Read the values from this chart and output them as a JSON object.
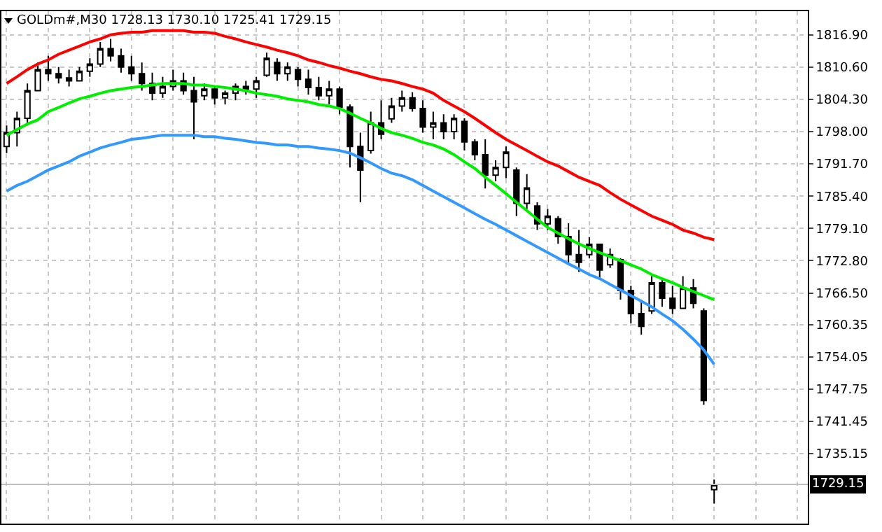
{
  "chart_data": {
    "type": "candlestick",
    "title": "GOLDm#,M30 1728.13 1730.10 1725.41 1729.15",
    "color": "#000000",
    "categories": [
      null,
      null,
      null,
      null,
      null,
      null,
      null,
      null,
      null,
      null,
      null,
      null,
      null,
      null,
      null,
      null,
      null,
      null,
      null,
      null,
      null,
      null,
      null,
      null,
      null,
      null,
      null,
      null,
      null,
      null,
      null,
      null,
      null,
      null,
      null,
      null,
      null,
      null,
      null,
      null,
      null,
      null,
      null,
      null,
      null,
      null,
      null,
      null,
      null,
      null,
      null,
      null,
      null,
      null,
      null,
      null,
      null,
      null,
      null,
      null,
      null,
      null,
      null,
      null,
      null,
      null,
      null,
      null,
      null
    ],
    "ohlc": [
      [
        1795.1,
        1799.2,
        1793.8,
        1797.8
      ],
      [
        1797.8,
        1801.9,
        1795.1,
        1800.6
      ],
      [
        1800.6,
        1807.4,
        1799.2,
        1806.0
      ],
      [
        1806.0,
        1811.5,
        1806.0,
        1810.1
      ],
      [
        1810.1,
        1812.8,
        1807.9,
        1809.3
      ],
      [
        1809.3,
        1810.6,
        1807.4,
        1808.5
      ],
      [
        1808.5,
        1810.1,
        1806.8,
        1807.9
      ],
      [
        1807.9,
        1810.6,
        1807.9,
        1809.8
      ],
      [
        1809.8,
        1812.3,
        1808.7,
        1811.2
      ],
      [
        1811.2,
        1815.5,
        1810.6,
        1814.2
      ],
      [
        1814.2,
        1816.1,
        1811.7,
        1812.8
      ],
      [
        1812.8,
        1814.2,
        1809.5,
        1810.6
      ],
      [
        1810.6,
        1812.8,
        1807.9,
        1809.3
      ],
      [
        1809.3,
        1811.5,
        1806.0,
        1807.4
      ],
      [
        1807.4,
        1809.5,
        1804.1,
        1805.5
      ],
      [
        1805.5,
        1808.7,
        1804.6,
        1806.8
      ],
      [
        1806.8,
        1810.1,
        1806.0,
        1807.9
      ],
      [
        1807.9,
        1809.5,
        1805.2,
        1806.0
      ],
      [
        1806.0,
        1808.7,
        1796.5,
        1803.8
      ],
      [
        1805.0,
        1807.4,
        1804.1,
        1806.3
      ],
      [
        1806.3,
        1806.8,
        1803.3,
        1804.6
      ],
      [
        1804.6,
        1806.0,
        1803.3,
        1805.5
      ],
      [
        1805.5,
        1807.4,
        1804.1,
        1806.8
      ],
      [
        1806.8,
        1807.9,
        1805.2,
        1806.3
      ],
      [
        1806.3,
        1808.7,
        1804.6,
        1807.9
      ],
      [
        1809.0,
        1813.4,
        1808.7,
        1812.3
      ],
      [
        1811.5,
        1812.3,
        1807.9,
        1809.3
      ],
      [
        1809.3,
        1811.5,
        1807.9,
        1810.6
      ],
      [
        1810.1,
        1810.6,
        1806.8,
        1808.2
      ],
      [
        1808.2,
        1810.1,
        1805.2,
        1806.6
      ],
      [
        1806.6,
        1808.7,
        1804.1,
        1805.0
      ],
      [
        1805.0,
        1807.9,
        1803.3,
        1806.3
      ],
      [
        1806.3,
        1806.8,
        1801.4,
        1802.8
      ],
      [
        1802.8,
        1803.3,
        1791.0,
        1795.1
      ],
      [
        1795.1,
        1797.8,
        1784.2,
        1790.5
      ],
      [
        1794.3,
        1801.9,
        1793.7,
        1799.7
      ],
      [
        1799.7,
        1804.1,
        1796.5,
        1797.5
      ],
      [
        1800.5,
        1804.6,
        1799.7,
        1803.0
      ],
      [
        1803.0,
        1806.0,
        1801.9,
        1804.6
      ],
      [
        1804.6,
        1805.7,
        1801.9,
        1802.5
      ],
      [
        1802.5,
        1804.1,
        1797.8,
        1798.9
      ],
      [
        1798.9,
        1801.9,
        1796.5,
        1799.7
      ],
      [
        1799.7,
        1801.4,
        1796.5,
        1798.0
      ],
      [
        1798.0,
        1801.4,
        1796.5,
        1800.6
      ],
      [
        1800.0,
        1800.6,
        1794.3,
        1796.0
      ],
      [
        1796.0,
        1796.5,
        1792.4,
        1793.5
      ],
      [
        1793.5,
        1796.5,
        1786.9,
        1789.5
      ],
      [
        1789.5,
        1792.4,
        1788.3,
        1791.0
      ],
      [
        1791.0,
        1795.1,
        1788.9,
        1794.0
      ],
      [
        1790.5,
        1791.0,
        1781.5,
        1784.0
      ],
      [
        1784.0,
        1789.7,
        1782.9,
        1787.0
      ],
      [
        1783.5,
        1784.2,
        1778.8,
        1780.0
      ],
      [
        1780.0,
        1782.9,
        1778.8,
        1781.5
      ],
      [
        1781.0,
        1781.5,
        1776.1,
        1777.5
      ],
      [
        1777.5,
        1780.1,
        1772.0,
        1774.0
      ],
      [
        1774.0,
        1778.8,
        1770.6,
        1772.5
      ],
      [
        1774.0,
        1777.4,
        1773.3,
        1776.0
      ],
      [
        1776.0,
        1776.1,
        1769.2,
        1771.0
      ],
      [
        1772.0,
        1775.2,
        1771.4,
        1774.0
      ],
      [
        1773.0,
        1773.3,
        1765.2,
        1767.0
      ],
      [
        1767.0,
        1767.9,
        1760.6,
        1762.5
      ],
      [
        1762.5,
        1765.2,
        1758.4,
        1760.0
      ],
      [
        1763.0,
        1769.8,
        1762.4,
        1768.5
      ],
      [
        1768.5,
        1769.2,
        1763.8,
        1765.5
      ],
      [
        1765.5,
        1767.9,
        1762.4,
        1763.5
      ],
      [
        1763.5,
        1769.8,
        1763.5,
        1767.5
      ],
      [
        1767.5,
        1769.2,
        1763.5,
        1764.5
      ],
      [
        1763.0,
        1763.5,
        1744.7,
        1745.5
      ],
      [
        1728.13,
        1730.1,
        1725.41,
        1729.15
      ]
    ],
    "series": [
      {
        "type": "line",
        "color": "#ff0000",
        "values": [
          1807.4,
          1808.7,
          1810.1,
          1811.2,
          1812.0,
          1813.1,
          1813.9,
          1814.7,
          1815.5,
          1816.1,
          1816.9,
          1817.2,
          1817.4,
          1817.4,
          1817.7,
          1817.7,
          1817.7,
          1817.7,
          1817.4,
          1817.4,
          1817.2,
          1816.6,
          1816.1,
          1815.5,
          1815.0,
          1814.5,
          1813.9,
          1813.4,
          1812.8,
          1812.0,
          1811.5,
          1810.9,
          1810.4,
          1809.8,
          1809.3,
          1808.7,
          1808.2,
          1807.9,
          1807.4,
          1806.8,
          1806.3,
          1805.5,
          1804.1,
          1803.0,
          1801.9,
          1800.6,
          1799.2,
          1797.8,
          1796.5,
          1795.4,
          1794.3,
          1793.2,
          1792.1,
          1791.3,
          1790.2,
          1789.1,
          1788.3,
          1787.5,
          1786.1,
          1784.8,
          1783.7,
          1782.6,
          1781.5,
          1780.7,
          1779.9,
          1778.8,
          1778.2,
          1777.4,
          1776.9
        ]
      },
      {
        "type": "line",
        "color": "#00ee00",
        "values": [
          1797.3,
          1798.4,
          1799.5,
          1800.3,
          1801.9,
          1802.7,
          1803.6,
          1804.4,
          1804.9,
          1805.5,
          1806.0,
          1806.3,
          1806.6,
          1806.8,
          1807.1,
          1807.4,
          1807.4,
          1807.4,
          1807.1,
          1807.1,
          1806.8,
          1806.6,
          1806.3,
          1806.0,
          1805.5,
          1805.2,
          1804.9,
          1804.4,
          1804.1,
          1803.8,
          1803.3,
          1803.0,
          1802.5,
          1801.6,
          1800.6,
          1799.7,
          1798.6,
          1797.8,
          1797.3,
          1796.7,
          1795.9,
          1795.4,
          1794.6,
          1793.5,
          1792.1,
          1790.8,
          1789.1,
          1787.5,
          1785.9,
          1784.2,
          1782.6,
          1780.9,
          1779.3,
          1778.2,
          1777.1,
          1776.1,
          1775.2,
          1774.4,
          1773.6,
          1772.8,
          1772.0,
          1771.2,
          1770.1,
          1769.3,
          1768.5,
          1767.6,
          1766.8,
          1766.0,
          1765.2
        ]
      },
      {
        "type": "line",
        "color": "#3399ff",
        "values": [
          1786.4,
          1787.5,
          1788.3,
          1789.4,
          1790.5,
          1791.3,
          1792.1,
          1793.2,
          1794.0,
          1794.8,
          1795.4,
          1795.9,
          1796.5,
          1796.7,
          1797.0,
          1797.3,
          1797.3,
          1797.3,
          1797.3,
          1797.0,
          1797.0,
          1796.7,
          1796.5,
          1796.2,
          1795.9,
          1795.7,
          1795.4,
          1795.4,
          1795.1,
          1795.1,
          1794.8,
          1794.6,
          1794.3,
          1793.8,
          1792.9,
          1791.9,
          1790.8,
          1789.9,
          1789.4,
          1788.6,
          1787.5,
          1786.4,
          1785.3,
          1784.2,
          1783.1,
          1782.0,
          1780.9,
          1779.9,
          1778.8,
          1777.7,
          1776.6,
          1775.5,
          1774.4,
          1773.3,
          1772.2,
          1771.2,
          1770.1,
          1769.3,
          1768.2,
          1767.1,
          1766.0,
          1764.9,
          1763.8,
          1762.4,
          1761.1,
          1759.4,
          1757.5,
          1755.4,
          1752.6
        ]
      }
    ],
    "ylim": [
      1721.5,
      1821.5
    ],
    "yticks": [
      {
        "value": 1816.9,
        "label": "1816.90"
      },
      {
        "value": 1810.6,
        "label": "1810.60"
      },
      {
        "value": 1804.3,
        "label": "1804.30"
      },
      {
        "value": 1798.0,
        "label": "1798.00"
      },
      {
        "value": 1791.7,
        "label": "1791.70"
      },
      {
        "value": 1785.4,
        "label": "1785.40"
      },
      {
        "value": 1779.1,
        "label": "1779.10"
      },
      {
        "value": 1772.8,
        "label": "1772.80"
      },
      {
        "value": 1766.5,
        "label": "1766.50"
      },
      {
        "value": 1760.35,
        "label": "1760.35"
      },
      {
        "value": 1754.05,
        "label": "1754.05"
      },
      {
        "value": 1747.75,
        "label": "1747.75"
      },
      {
        "value": 1741.45,
        "label": "1741.45"
      },
      {
        "value": 1735.15,
        "label": "1735.15"
      }
    ],
    "grid": true,
    "ref_lines": [
      {
        "axis": "y",
        "value": 1729.15,
        "label": "1729.15",
        "color": "#c0c0c0"
      }
    ]
  }
}
